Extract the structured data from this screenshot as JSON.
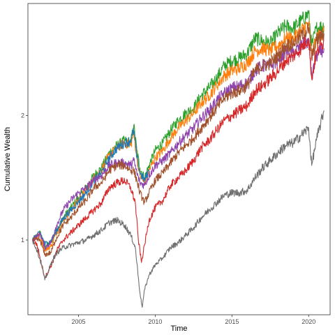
{
  "chart_data": {
    "type": "line",
    "title": "",
    "xlabel": "Time",
    "ylabel": "Cumulative Wealth",
    "xlim": [
      2001.7,
      2021.4
    ],
    "ylim": [
      0.4,
      2.9
    ],
    "x_ticks": [
      2005,
      2010,
      2015,
      2020
    ],
    "x_tick_labels": [
      "2005",
      "2010",
      "2015",
      "2020"
    ],
    "y_ticks": [
      1,
      2
    ],
    "y_tick_labels": [
      "1",
      "2"
    ],
    "grid": false,
    "legend": "none",
    "series": [
      {
        "color": "#2ca02c",
        "points": [
          [
            2002.0,
            1.0
          ],
          [
            2002.5,
            1.06
          ],
          [
            2002.8,
            0.95
          ],
          [
            2003.2,
            0.98
          ],
          [
            2003.5,
            1.06
          ],
          [
            2004.0,
            1.18
          ],
          [
            2004.5,
            1.26
          ],
          [
            2005.0,
            1.34
          ],
          [
            2005.5,
            1.42
          ],
          [
            2006.0,
            1.52
          ],
          [
            2006.5,
            1.58
          ],
          [
            2007.0,
            1.7
          ],
          [
            2007.5,
            1.76
          ],
          [
            2008.0,
            1.8
          ],
          [
            2008.4,
            1.78
          ],
          [
            2008.6,
            1.92
          ],
          [
            2008.8,
            1.72
          ],
          [
            2009.0,
            1.58
          ],
          [
            2009.3,
            1.5
          ],
          [
            2009.6,
            1.6
          ],
          [
            2010.0,
            1.72
          ],
          [
            2010.5,
            1.78
          ],
          [
            2011.0,
            1.88
          ],
          [
            2011.5,
            1.96
          ],
          [
            2012.0,
            2.02
          ],
          [
            2012.5,
            2.06
          ],
          [
            2013.0,
            2.16
          ],
          [
            2013.5,
            2.22
          ],
          [
            2014.0,
            2.3
          ],
          [
            2014.5,
            2.4
          ],
          [
            2015.0,
            2.44
          ],
          [
            2015.5,
            2.46
          ],
          [
            2016.0,
            2.5
          ],
          [
            2016.5,
            2.62
          ],
          [
            2017.0,
            2.6
          ],
          [
            2017.5,
            2.58
          ],
          [
            2018.0,
            2.66
          ],
          [
            2018.5,
            2.72
          ],
          [
            2019.0,
            2.7
          ],
          [
            2019.5,
            2.76
          ],
          [
            2020.0,
            2.82
          ],
          [
            2020.2,
            2.56
          ],
          [
            2020.5,
            2.7
          ],
          [
            2021.0,
            2.72
          ]
        ]
      },
      {
        "color": "#ff7f0e",
        "points": [
          [
            2002.0,
            1.0
          ],
          [
            2002.5,
            1.04
          ],
          [
            2002.8,
            0.92
          ],
          [
            2003.2,
            0.95
          ],
          [
            2003.5,
            1.04
          ],
          [
            2004.0,
            1.16
          ],
          [
            2004.5,
            1.24
          ],
          [
            2005.0,
            1.32
          ],
          [
            2005.5,
            1.4
          ],
          [
            2006.0,
            1.5
          ],
          [
            2006.5,
            1.56
          ],
          [
            2007.0,
            1.68
          ],
          [
            2007.5,
            1.74
          ],
          [
            2008.0,
            1.78
          ],
          [
            2008.4,
            1.76
          ],
          [
            2008.6,
            1.86
          ],
          [
            2008.8,
            1.66
          ],
          [
            2009.0,
            1.52
          ],
          [
            2009.3,
            1.46
          ],
          [
            2009.6,
            1.56
          ],
          [
            2010.0,
            1.66
          ],
          [
            2010.5,
            1.72
          ],
          [
            2011.0,
            1.82
          ],
          [
            2011.5,
            1.9
          ],
          [
            2012.0,
            1.96
          ],
          [
            2012.5,
            2.02
          ],
          [
            2013.0,
            2.1
          ],
          [
            2013.5,
            2.16
          ],
          [
            2014.0,
            2.24
          ],
          [
            2014.5,
            2.32
          ],
          [
            2015.0,
            2.36
          ],
          [
            2015.5,
            2.38
          ],
          [
            2016.0,
            2.42
          ],
          [
            2016.5,
            2.52
          ],
          [
            2017.0,
            2.54
          ],
          [
            2017.5,
            2.52
          ],
          [
            2018.0,
            2.56
          ],
          [
            2018.5,
            2.62
          ],
          [
            2019.0,
            2.62
          ],
          [
            2019.5,
            2.68
          ],
          [
            2020.0,
            2.74
          ],
          [
            2020.2,
            2.48
          ],
          [
            2020.5,
            2.62
          ],
          [
            2021.0,
            2.68
          ]
        ]
      },
      {
        "color": "#1f77b4",
        "points": [
          [
            2002.0,
            1.0
          ],
          [
            2002.5,
            1.06
          ],
          [
            2002.8,
            0.97
          ],
          [
            2003.2,
            0.99
          ],
          [
            2003.5,
            1.06
          ],
          [
            2004.0,
            1.17
          ],
          [
            2004.5,
            1.24
          ],
          [
            2005.0,
            1.31
          ],
          [
            2005.5,
            1.38
          ],
          [
            2006.0,
            1.48
          ],
          [
            2006.5,
            1.54
          ],
          [
            2007.0,
            1.66
          ],
          [
            2007.5,
            1.74
          ],
          [
            2008.0,
            1.78
          ],
          [
            2008.4,
            1.8
          ],
          [
            2008.6,
            1.88
          ],
          [
            2008.8,
            1.66
          ],
          [
            2009.0,
            1.54
          ],
          [
            2009.3,
            1.48
          ],
          [
            2009.6,
            1.56
          ]
        ]
      },
      {
        "color": "#8e44ad",
        "points": [
          [
            2002.0,
            1.0
          ],
          [
            2002.5,
            1.05
          ],
          [
            2002.8,
            0.94
          ],
          [
            2003.2,
            0.98
          ],
          [
            2003.5,
            1.1
          ],
          [
            2004.0,
            1.24
          ],
          [
            2004.5,
            1.32
          ],
          [
            2005.0,
            1.38
          ],
          [
            2005.5,
            1.42
          ],
          [
            2006.0,
            1.48
          ],
          [
            2006.5,
            1.52
          ],
          [
            2007.0,
            1.6
          ],
          [
            2007.5,
            1.62
          ],
          [
            2008.0,
            1.62
          ],
          [
            2008.4,
            1.6
          ],
          [
            2008.6,
            1.64
          ],
          [
            2008.8,
            1.54
          ],
          [
            2009.0,
            1.46
          ],
          [
            2009.3,
            1.44
          ],
          [
            2009.6,
            1.52
          ],
          [
            2010.0,
            1.6
          ],
          [
            2010.5,
            1.64
          ],
          [
            2011.0,
            1.7
          ],
          [
            2011.5,
            1.78
          ],
          [
            2012.0,
            1.84
          ],
          [
            2012.5,
            1.9
          ],
          [
            2013.0,
            1.98
          ],
          [
            2013.5,
            2.04
          ],
          [
            2014.0,
            2.12
          ],
          [
            2014.5,
            2.18
          ],
          [
            2015.0,
            2.22
          ],
          [
            2015.5,
            2.24
          ],
          [
            2016.0,
            2.26
          ],
          [
            2016.5,
            2.36
          ],
          [
            2017.0,
            2.4
          ],
          [
            2017.5,
            2.4
          ],
          [
            2018.0,
            2.44
          ],
          [
            2018.5,
            2.52
          ],
          [
            2019.0,
            2.5
          ],
          [
            2019.5,
            2.56
          ],
          [
            2020.0,
            2.6
          ],
          [
            2020.2,
            2.3
          ],
          [
            2020.5,
            2.48
          ],
          [
            2021.0,
            2.54
          ]
        ]
      },
      {
        "color": "#a0522d",
        "points": [
          [
            2002.0,
            1.0
          ],
          [
            2002.5,
            1.0
          ],
          [
            2002.8,
            0.88
          ],
          [
            2003.2,
            0.9
          ],
          [
            2003.5,
            1.0
          ],
          [
            2004.0,
            1.12
          ],
          [
            2004.5,
            1.18
          ],
          [
            2005.0,
            1.26
          ],
          [
            2005.5,
            1.32
          ],
          [
            2006.0,
            1.42
          ],
          [
            2006.5,
            1.46
          ],
          [
            2007.0,
            1.56
          ],
          [
            2007.5,
            1.6
          ],
          [
            2008.0,
            1.6
          ],
          [
            2008.4,
            1.56
          ],
          [
            2008.6,
            1.56
          ],
          [
            2008.8,
            1.48
          ],
          [
            2009.0,
            1.38
          ],
          [
            2009.3,
            1.3
          ],
          [
            2009.6,
            1.38
          ],
          [
            2010.0,
            1.48
          ],
          [
            2010.5,
            1.54
          ],
          [
            2011.0,
            1.62
          ],
          [
            2011.5,
            1.7
          ],
          [
            2012.0,
            1.76
          ],
          [
            2012.5,
            1.82
          ],
          [
            2013.0,
            1.9
          ],
          [
            2013.5,
            1.98
          ],
          [
            2014.0,
            2.06
          ],
          [
            2014.5,
            2.14
          ],
          [
            2015.0,
            2.18
          ],
          [
            2015.5,
            2.2
          ],
          [
            2016.0,
            2.24
          ],
          [
            2016.5,
            2.36
          ],
          [
            2017.0,
            2.4
          ],
          [
            2017.5,
            2.42
          ],
          [
            2018.0,
            2.48
          ],
          [
            2018.5,
            2.56
          ],
          [
            2019.0,
            2.58
          ],
          [
            2019.5,
            2.64
          ],
          [
            2020.0,
            2.7
          ],
          [
            2020.2,
            2.46
          ],
          [
            2020.5,
            2.6
          ],
          [
            2021.0,
            2.66
          ]
        ]
      },
      {
        "color": "#d62728",
        "points": [
          [
            2002.0,
            1.0
          ],
          [
            2002.3,
            0.96
          ],
          [
            2002.6,
            0.8
          ],
          [
            2002.8,
            0.7
          ],
          [
            2003.0,
            0.74
          ],
          [
            2003.3,
            0.82
          ],
          [
            2003.6,
            0.92
          ],
          [
            2004.0,
            1.0
          ],
          [
            2004.5,
            1.06
          ],
          [
            2005.0,
            1.12
          ],
          [
            2005.5,
            1.18
          ],
          [
            2006.0,
            1.24
          ],
          [
            2006.5,
            1.3
          ],
          [
            2007.0,
            1.42
          ],
          [
            2007.5,
            1.46
          ],
          [
            2008.0,
            1.48
          ],
          [
            2008.4,
            1.42
          ],
          [
            2008.7,
            1.3
          ],
          [
            2008.9,
            1.0
          ],
          [
            2009.0,
            0.92
          ],
          [
            2009.1,
            0.82
          ],
          [
            2009.3,
            0.96
          ],
          [
            2009.6,
            1.16
          ],
          [
            2010.0,
            1.26
          ],
          [
            2010.5,
            1.32
          ],
          [
            2011.0,
            1.44
          ],
          [
            2011.5,
            1.5
          ],
          [
            2012.0,
            1.56
          ],
          [
            2012.5,
            1.64
          ],
          [
            2013.0,
            1.74
          ],
          [
            2013.5,
            1.8
          ],
          [
            2014.0,
            1.88
          ],
          [
            2014.5,
            1.96
          ],
          [
            2015.0,
            2.0
          ],
          [
            2015.5,
            2.04
          ],
          [
            2016.0,
            2.08
          ],
          [
            2016.5,
            2.2
          ],
          [
            2017.0,
            2.24
          ],
          [
            2017.5,
            2.3
          ],
          [
            2018.0,
            2.36
          ],
          [
            2018.5,
            2.44
          ],
          [
            2019.0,
            2.48
          ],
          [
            2019.5,
            2.54
          ],
          [
            2020.0,
            2.62
          ],
          [
            2020.2,
            2.3
          ],
          [
            2020.5,
            2.5
          ],
          [
            2021.0,
            2.6
          ]
        ]
      },
      {
        "color": "#6f6f6f",
        "points": [
          [
            2002.0,
            1.0
          ],
          [
            2002.3,
            0.92
          ],
          [
            2002.6,
            0.8
          ],
          [
            2002.8,
            0.68
          ],
          [
            2003.0,
            0.74
          ],
          [
            2003.3,
            0.84
          ],
          [
            2003.6,
            0.9
          ],
          [
            2004.0,
            0.94
          ],
          [
            2004.5,
            0.96
          ],
          [
            2005.0,
            0.98
          ],
          [
            2005.5,
            1.0
          ],
          [
            2006.0,
            1.04
          ],
          [
            2006.5,
            1.08
          ],
          [
            2007.0,
            1.14
          ],
          [
            2007.5,
            1.16
          ],
          [
            2008.0,
            1.12
          ],
          [
            2008.4,
            1.04
          ],
          [
            2008.7,
            0.94
          ],
          [
            2008.9,
            0.7
          ],
          [
            2009.0,
            0.58
          ],
          [
            2009.15,
            0.46
          ],
          [
            2009.3,
            0.6
          ],
          [
            2009.6,
            0.72
          ],
          [
            2010.0,
            0.8
          ],
          [
            2010.5,
            0.86
          ],
          [
            2011.0,
            0.94
          ],
          [
            2011.5,
            0.98
          ],
          [
            2012.0,
            1.04
          ],
          [
            2012.5,
            1.1
          ],
          [
            2013.0,
            1.18
          ],
          [
            2013.5,
            1.24
          ],
          [
            2014.0,
            1.3
          ],
          [
            2014.5,
            1.36
          ],
          [
            2015.0,
            1.38
          ],
          [
            2015.5,
            1.38
          ],
          [
            2016.0,
            1.4
          ],
          [
            2016.5,
            1.5
          ],
          [
            2017.0,
            1.58
          ],
          [
            2017.5,
            1.64
          ],
          [
            2018.0,
            1.7
          ],
          [
            2018.5,
            1.76
          ],
          [
            2019.0,
            1.78
          ],
          [
            2019.5,
            1.84
          ],
          [
            2020.0,
            1.9
          ],
          [
            2020.2,
            1.6
          ],
          [
            2020.5,
            1.8
          ],
          [
            2021.0,
            2.04
          ]
        ]
      }
    ]
  }
}
